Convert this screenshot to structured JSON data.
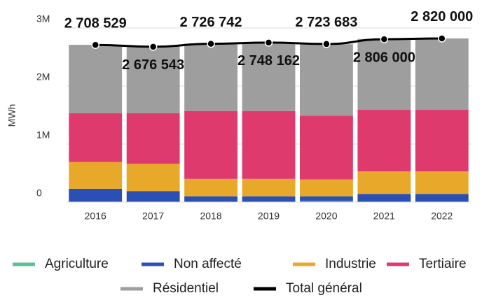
{
  "chart_data": {
    "type": "bar",
    "stacked": true,
    "y_label": "MWh",
    "categories": [
      "2016",
      "2017",
      "2018",
      "2019",
      "2020",
      "2021",
      "2022"
    ],
    "series": [
      {
        "name": "Agriculture",
        "color": "#5bbf9a",
        "values": [
          10000,
          10000,
          10000,
          10000,
          20000,
          10000,
          10000
        ]
      },
      {
        "name": "Non affecté",
        "color": "#2a4fb5",
        "values": [
          220000,
          180000,
          90000,
          90000,
          80000,
          130000,
          130000
        ]
      },
      {
        "name": "Industrie",
        "color": "#e8a92a",
        "values": [
          460000,
          470000,
          300000,
          300000,
          290000,
          390000,
          390000
        ]
      },
      {
        "name": "Tertiaire",
        "color": "#de3a6e",
        "values": [
          840000,
          870000,
          1170000,
          1170000,
          1100000,
          1060000,
          1060000
        ]
      },
      {
        "name": "Résidentiel",
        "color": "#9e9e9e",
        "values": [
          1180000,
          1150000,
          1160000,
          1180000,
          1230000,
          1220000,
          1230000
        ]
      },
      {
        "name": "Total général",
        "color": "#000000",
        "type": "line",
        "values": [
          2708529,
          2676543,
          2726742,
          2748162,
          2723683,
          2806000,
          2820000
        ],
        "value_labels": [
          "2 708 529",
          "2 676 543",
          "2 726 742",
          "2 748 162",
          "2 723 683",
          "2 806 000",
          "2 820 000"
        ]
      }
    ],
    "ylim": [
      0,
      3000000
    ],
    "yticks": [
      0,
      {
        "value": 1000000,
        "label": "1M"
      },
      {
        "value": 2000000,
        "label": "2M"
      },
      {
        "value": 3000000,
        "label": "3M"
      }
    ],
    "grid": true
  }
}
